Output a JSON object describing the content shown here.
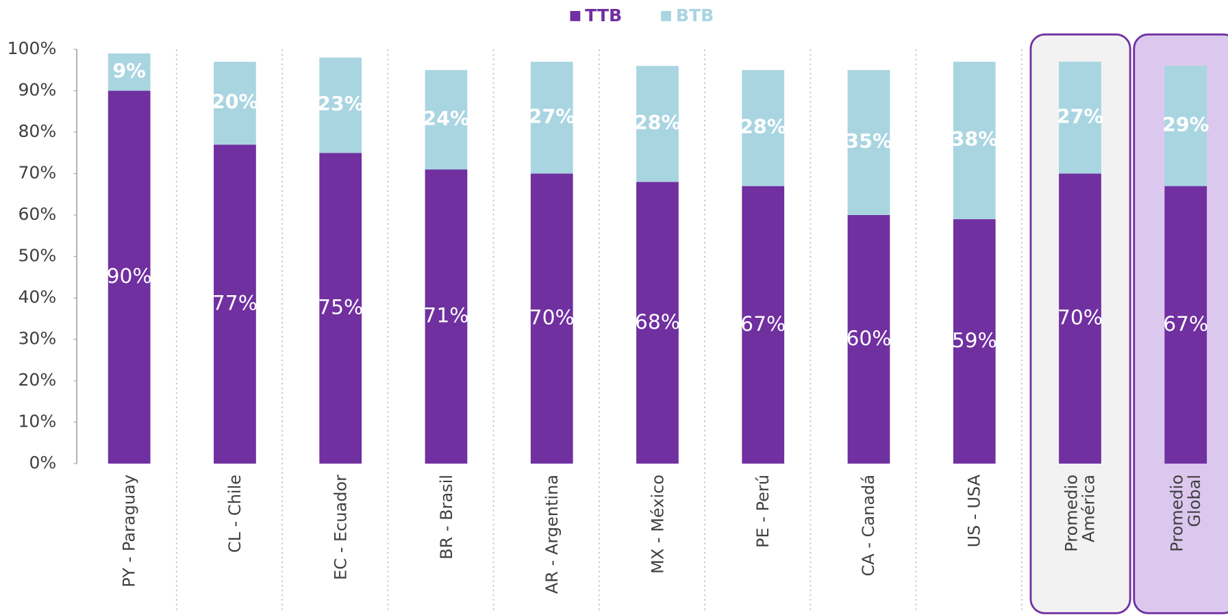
{
  "chart_data": {
    "type": "stacked_bar",
    "categories": [
      "PY - Paraguay",
      "CL - Chile",
      "EC - Ecuador",
      "BR - Brasil",
      "AR - Argentina",
      "MX - México",
      "PE - Perú",
      "CA - Canadá",
      "US - USA",
      "Promedio América",
      "Promedio Global"
    ],
    "series": [
      {
        "name": "TTB",
        "color": "#7030a0",
        "values": [
          90,
          77,
          75,
          71,
          70,
          68,
          67,
          60,
          59,
          70,
          67
        ],
        "value_labels": [
          "90%",
          "77%",
          "75%",
          "71%",
          "70%",
          "68%",
          "67%",
          "60%",
          "59%",
          "70%",
          "67%"
        ]
      },
      {
        "name": "BTB",
        "color": "#a9d5e1",
        "values": [
          9,
          20,
          23,
          24,
          27,
          28,
          28,
          35,
          38,
          27,
          29
        ],
        "value_labels": [
          "9%",
          "20%",
          "23%",
          "24%",
          "27%",
          "28%",
          "28%",
          "35%",
          "38%",
          "27%",
          "29%"
        ]
      }
    ],
    "ylim": [
      0,
      100
    ],
    "yticks": [
      {
        "value": 0,
        "label": "0%"
      },
      {
        "value": 10,
        "label": "10%"
      },
      {
        "value": 20,
        "label": "20%"
      },
      {
        "value": 30,
        "label": "30%"
      },
      {
        "value": 40,
        "label": "40%"
      },
      {
        "value": 50,
        "label": "50%"
      },
      {
        "value": 60,
        "label": "60%"
      },
      {
        "value": 70,
        "label": "70%"
      },
      {
        "value": 80,
        "label": "80%"
      },
      {
        "value": 90,
        "label": "90%"
      },
      {
        "value": 100,
        "label": "100%"
      }
    ],
    "legend": "top"
  }
}
